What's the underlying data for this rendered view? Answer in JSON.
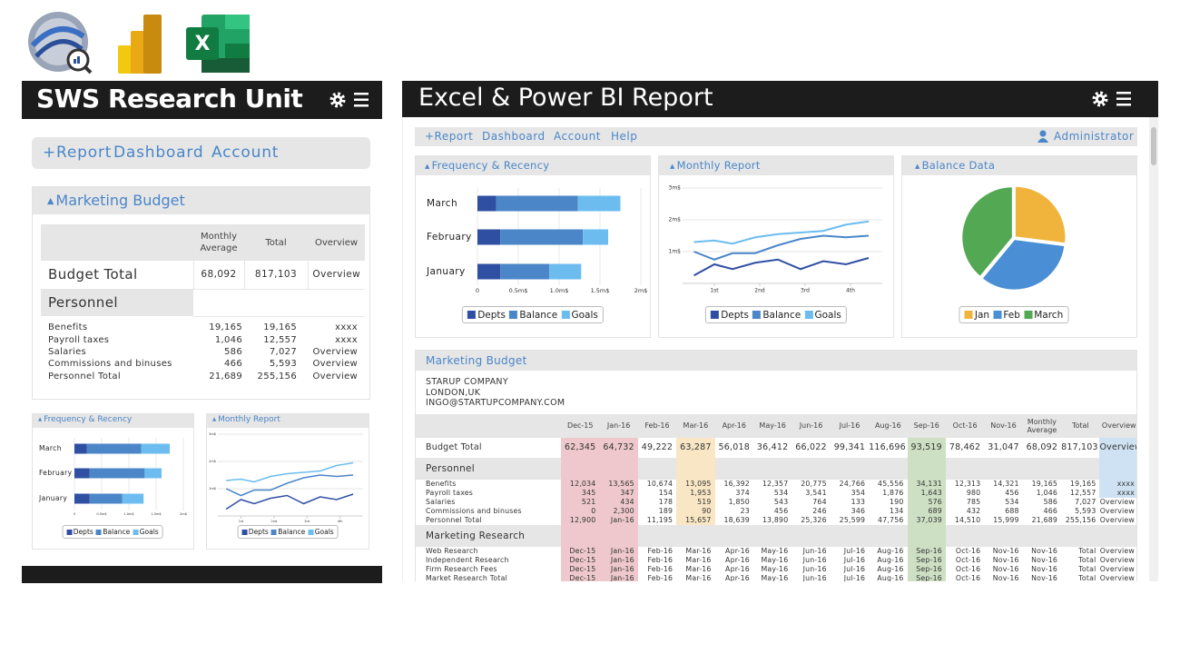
{
  "logos": {
    "excel_letter": "X"
  },
  "left": {
    "title": "SWS Research Unit",
    "nav": [
      "+Report",
      "Dashboard",
      "Account"
    ],
    "budget": {
      "title": "Marketing Budget",
      "columns": [
        "Monthly Average",
        "Total",
        "Overview"
      ],
      "total_row": [
        "Budget Total",
        "68,092",
        "817,103",
        "Overview"
      ],
      "section": "Personnel",
      "rows": [
        [
          "Benefits",
          "19,165",
          "19,165",
          "xxxx"
        ],
        [
          "Payroll taxes",
          "1,046",
          "12,557",
          "xxxx"
        ],
        [
          "Salaries",
          "586",
          "7,027",
          "Overview"
        ],
        [
          "Commissions and binuses",
          "466",
          "5,593",
          "Overview"
        ],
        [
          "Personnel Total",
          "21,689",
          "255,156",
          "Overview"
        ]
      ]
    }
  },
  "right": {
    "title": "Excel & Power BI Report",
    "nav": [
      "+Report",
      "Dashboard",
      "Account",
      "Help"
    ],
    "user": "Administrator",
    "budget": {
      "title": "Marketing Budget",
      "company": [
        "STARUP COMPANY",
        "LONDON,UK",
        "INGO@STARTUPCOMPANY.COM"
      ],
      "columns": [
        "Dec-15",
        "Jan-16",
        "Feb-16",
        "Mar-16",
        "Apr-16",
        "May-16",
        "Jun-16",
        "Jul-16",
        "Aug-16",
        "Sep-16",
        "Oct-16",
        "Nov-16",
        "Monthly Average",
        "Total",
        "Overview"
      ],
      "total_row": [
        "Budget Total",
        "62,345",
        "64,732",
        "49,222",
        "63,287",
        "56,018",
        "36,412",
        "66,022",
        "99,341",
        "116,696",
        "93,519",
        "78,462",
        "31,047",
        "68,092",
        "817,103",
        "Overview"
      ],
      "sections": [
        {
          "name": "Personnel",
          "rows": [
            [
              "Benefits",
              "12,034",
              "13,565",
              "10,674",
              "13,095",
              "16,392",
              "12,357",
              "20,775",
              "24,766",
              "45,556",
              "34,131",
              "12,313",
              "14,321",
              "19,165",
              "19,165",
              "xxxx"
            ],
            [
              "Payroll taxes",
              "345",
              "347",
              "154",
              "1,953",
              "374",
              "534",
              "3,541",
              "354",
              "1,876",
              "1,643",
              "980",
              "456",
              "1,046",
              "12,557",
              "xxxx"
            ],
            [
              "Salaries",
              "521",
              "434",
              "178",
              "519",
              "1,850",
              "543",
              "764",
              "133",
              "190",
              "576",
              "785",
              "534",
              "586",
              "7,027",
              "Overview"
            ],
            [
              "Commissions and binuses",
              "0",
              "2,300",
              "189",
              "90",
              "23",
              "456",
              "246",
              "346",
              "134",
              "689",
              "432",
              "688",
              "466",
              "5,593",
              "Overview"
            ],
            [
              "Personnel Total",
              "12,900",
              "Jan-16",
              "11,195",
              "15,657",
              "18,639",
              "13,890",
              "25,326",
              "25,599",
              "47,756",
              "37,039",
              "14,510",
              "15,999",
              "21,689",
              "255,156",
              "Overview"
            ]
          ]
        },
        {
          "name": "Marketing Research",
          "rows": [
            [
              "Web Research",
              "Dec-15",
              "Jan-16",
              "Feb-16",
              "Mar-16",
              "Apr-16",
              "May-16",
              "Jun-16",
              "Jul-16",
              "Aug-16",
              "Sep-16",
              "Oct-16",
              "Nov-16",
              "Nov-16",
              "Total",
              "Overview"
            ],
            [
              "Independent Research",
              "Dec-15",
              "Jan-16",
              "Feb-16",
              "Mar-16",
              "Apr-16",
              "May-16",
              "Jun-16",
              "Jul-16",
              "Aug-16",
              "Sep-16",
              "Oct-16",
              "Nov-16",
              "Nov-16",
              "Total",
              "Overview"
            ],
            [
              "Firm Research Fees",
              "Dec-15",
              "Jan-16",
              "Feb-16",
              "Mar-16",
              "Apr-16",
              "May-16",
              "Jun-16",
              "Jul-16",
              "Aug-16",
              "Sep-16",
              "Oct-16",
              "Nov-16",
              "Nov-16",
              "Total",
              "Overview"
            ],
            [
              "Market Research Total",
              "Dec-15",
              "Jan-16",
              "Feb-16",
              "Mar-16",
              "Apr-16",
              "May-16",
              "Jun-16",
              "Jul-16",
              "Aug-16",
              "Sep-16",
              "Oct-16",
              "Nov-16",
              "Nov-16",
              "Total",
              "Overview"
            ]
          ]
        }
      ]
    }
  },
  "chart_data": [
    {
      "type": "bar",
      "orientation": "horizontal",
      "stacked": true,
      "title": "Frequency & Recency",
      "categories": [
        "March",
        "February",
        "January"
      ],
      "series": [
        {
          "name": "Depts",
          "color": "#2f4fa3",
          "values": [
            0.23,
            0.28,
            0.28
          ]
        },
        {
          "name": "Balance",
          "color": "#4a86c8",
          "values": [
            1.0,
            1.01,
            0.6
          ]
        },
        {
          "name": "Goals",
          "color": "#6cbcf0",
          "values": [
            0.52,
            0.31,
            0.39
          ]
        }
      ],
      "xlim": [
        0,
        2
      ],
      "xticks": [
        0,
        {
          "value": 0.5,
          "label": "0.5m$"
        },
        {
          "value": 1,
          "label": "1.0m$"
        },
        {
          "value": 1.5,
          "label": "1.5m$"
        },
        {
          "value": 2,
          "label": "2m$"
        }
      ],
      "grid": true
    },
    {
      "type": "line",
      "title": "Monthly Report",
      "x": [
        0.55,
        1.0,
        1.4,
        1.9,
        2.4,
        2.9,
        3.4,
        3.9,
        4.4
      ],
      "series": [
        {
          "name": "Depts",
          "color": "#2f4fa3",
          "values": [
            0.25,
            0.6,
            0.45,
            0.65,
            0.75,
            0.45,
            0.7,
            0.6,
            0.8
          ]
        },
        {
          "name": "Balance",
          "color": "#4a86c8",
          "values": [
            1.0,
            0.75,
            0.95,
            0.95,
            1.2,
            1.4,
            1.5,
            1.45,
            1.5
          ]
        },
        {
          "name": "Goals",
          "color": "#6cbcf0",
          "values": [
            1.3,
            1.35,
            1.25,
            1.45,
            1.55,
            1.6,
            1.65,
            1.85,
            1.95
          ]
        }
      ],
      "xlim": [
        0.3,
        4.7
      ],
      "xticks": [
        {
          "value": 1,
          "label": "1st"
        },
        {
          "value": 2,
          "label": "2nd"
        },
        {
          "value": 3,
          "label": "3rd"
        },
        {
          "value": 4,
          "label": "4th"
        }
      ],
      "ylim": [
        0,
        3.2
      ],
      "yticks": [
        {
          "value": 1,
          "label": "1m$"
        },
        {
          "value": 2,
          "label": "2m$"
        },
        {
          "value": 3,
          "label": "3m$"
        }
      ],
      "grid": true
    },
    {
      "type": "pie",
      "title": "Balance Data",
      "categories": [
        "Jan",
        "Feb",
        "March"
      ],
      "values": [
        27,
        34,
        39
      ],
      "colors": [
        "#f0b43c",
        "#4a8fd6",
        "#53a853"
      ]
    }
  ]
}
